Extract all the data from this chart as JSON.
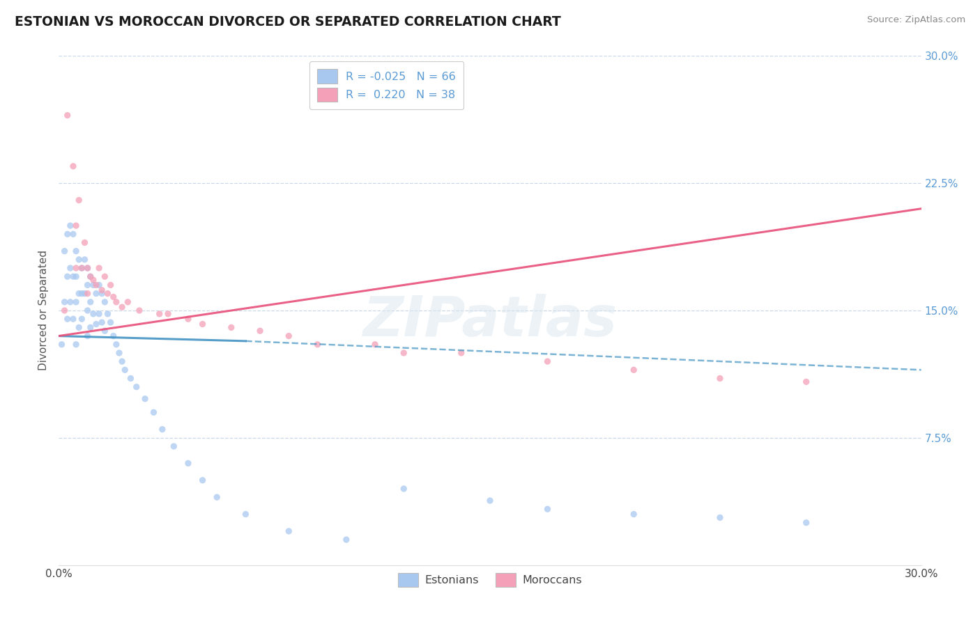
{
  "title": "ESTONIAN VS MOROCCAN DIVORCED OR SEPARATED CORRELATION CHART",
  "source_text": "Source: ZipAtlas.com",
  "ylabel": "Divorced or Separated",
  "xmin": 0.0,
  "xmax": 0.3,
  "ymin": 0.0,
  "ymax": 0.3,
  "ytick_values": [
    0.075,
    0.15,
    0.225,
    0.3
  ],
  "ytick_labels": [
    "7.5%",
    "15.0%",
    "22.5%",
    "30.0%"
  ],
  "xtick_values": [
    0.0,
    0.3
  ],
  "xtick_labels": [
    "0.0%",
    "30.0%"
  ],
  "watermark": "ZIPatlas",
  "legend_entries": [
    {
      "label": "Estonians",
      "color": "#a8c8f0",
      "R": -0.025,
      "N": 66
    },
    {
      "label": "Moroccans",
      "color": "#f4a0b8",
      "R": 0.22,
      "N": 38
    }
  ],
  "estonian_x": [
    0.001,
    0.002,
    0.002,
    0.003,
    0.003,
    0.003,
    0.004,
    0.004,
    0.004,
    0.005,
    0.005,
    0.005,
    0.006,
    0.006,
    0.006,
    0.006,
    0.007,
    0.007,
    0.007,
    0.008,
    0.008,
    0.008,
    0.009,
    0.009,
    0.01,
    0.01,
    0.01,
    0.01,
    0.011,
    0.011,
    0.011,
    0.012,
    0.012,
    0.013,
    0.013,
    0.014,
    0.014,
    0.015,
    0.015,
    0.016,
    0.016,
    0.017,
    0.018,
    0.019,
    0.02,
    0.021,
    0.022,
    0.023,
    0.025,
    0.027,
    0.03,
    0.033,
    0.036,
    0.04,
    0.045,
    0.05,
    0.055,
    0.065,
    0.08,
    0.1,
    0.12,
    0.15,
    0.17,
    0.2,
    0.23,
    0.26
  ],
  "estonian_y": [
    0.13,
    0.185,
    0.155,
    0.195,
    0.17,
    0.145,
    0.2,
    0.175,
    0.155,
    0.195,
    0.17,
    0.145,
    0.185,
    0.17,
    0.155,
    0.13,
    0.18,
    0.16,
    0.14,
    0.175,
    0.16,
    0.145,
    0.18,
    0.16,
    0.175,
    0.165,
    0.15,
    0.135,
    0.17,
    0.155,
    0.14,
    0.165,
    0.148,
    0.16,
    0.142,
    0.165,
    0.148,
    0.16,
    0.143,
    0.155,
    0.138,
    0.148,
    0.143,
    0.135,
    0.13,
    0.125,
    0.12,
    0.115,
    0.11,
    0.105,
    0.098,
    0.09,
    0.08,
    0.07,
    0.06,
    0.05,
    0.04,
    0.03,
    0.02,
    0.015,
    0.045,
    0.038,
    0.033,
    0.03,
    0.028,
    0.025
  ],
  "moroccan_x": [
    0.002,
    0.003,
    0.005,
    0.006,
    0.006,
    0.007,
    0.008,
    0.009,
    0.01,
    0.01,
    0.011,
    0.012,
    0.013,
    0.014,
    0.015,
    0.016,
    0.017,
    0.018,
    0.019,
    0.02,
    0.022,
    0.024,
    0.028,
    0.035,
    0.045,
    0.06,
    0.08,
    0.11,
    0.14,
    0.17,
    0.2,
    0.23,
    0.26,
    0.038,
    0.05,
    0.07,
    0.09,
    0.12
  ],
  "moroccan_y": [
    0.15,
    0.265,
    0.235,
    0.2,
    0.175,
    0.215,
    0.175,
    0.19,
    0.175,
    0.16,
    0.17,
    0.168,
    0.165,
    0.175,
    0.162,
    0.17,
    0.16,
    0.165,
    0.158,
    0.155,
    0.152,
    0.155,
    0.15,
    0.148,
    0.145,
    0.14,
    0.135,
    0.13,
    0.125,
    0.12,
    0.115,
    0.11,
    0.108,
    0.148,
    0.142,
    0.138,
    0.13,
    0.125
  ],
  "estonian_line_color": "#4393c3",
  "estonian_line_solid_end": 0.065,
  "moroccan_line_color": "#e8507a",
  "background_color": "#ffffff",
  "grid_color": "#c8d8e8",
  "scatter_alpha": 0.75,
  "scatter_size": 45
}
